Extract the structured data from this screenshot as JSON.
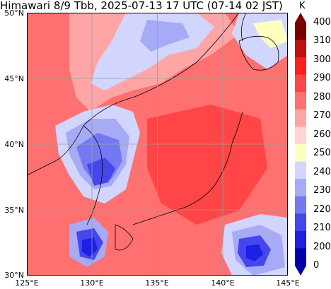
{
  "title": "Himawari 8/9 Tbb, 2025-07-13 17 UTC (07-14 02 JST)",
  "lat_labels": [
    "50°N",
    "45°N",
    "40°N",
    "35°N",
    "30°N"
  ],
  "lon_labels": [
    "125°E",
    "130°E",
    "135°E",
    "140°E",
    "145°E"
  ],
  "colorbar": {
    "unit": "K",
    "ticks": [
      "400",
      "310",
      "300",
      "290",
      "280",
      "270",
      "260",
      "250",
      "240",
      "230",
      "220",
      "210",
      "200",
      "0"
    ],
    "colors": [
      "#7a0000",
      "#c01010",
      "#ff1f1f",
      "#ff4545",
      "#ff7070",
      "#ffa5a5",
      "#ffd5d5",
      "#ffffc2",
      "#d2d6ff",
      "#a7aaf4",
      "#7479f1",
      "#4546ec",
      "#1c1fe4",
      "#0000a8"
    ]
  },
  "map_colors": {
    "warm": "#ff7070",
    "warm_light": "#ffa5a5",
    "very_warm": "#ff4545",
    "cloud_light": "#d2d6ff",
    "cloud_mid": "#a7aaf4",
    "cloud_cold": "#7479f1",
    "cloud_colder": "#4546ec",
    "cloud_coldest": "#1c1fe4",
    "high_cloud": "#ffffc2"
  }
}
